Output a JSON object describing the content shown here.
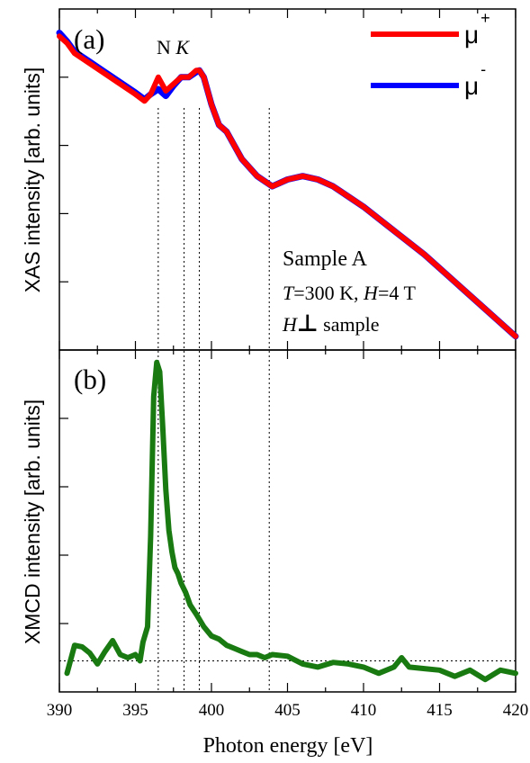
{
  "chart_data": [
    {
      "type": "line",
      "panel_label": "(a)",
      "xlabel": "",
      "ylabel": "XAS intensity [arb. units]",
      "xlim": [
        390,
        420
      ],
      "ylim": [
        0,
        1
      ],
      "legend_position": "top-right",
      "series": [
        {
          "name": "μ",
          "superscript": "+",
          "color": "#ff0000",
          "x": [
            390,
            390.5,
            391,
            392,
            393,
            394,
            395,
            395.6,
            396,
            396.5,
            397,
            397.5,
            398,
            398.5,
            399,
            399.2,
            399.5,
            400,
            400.5,
            401,
            402,
            403,
            404,
            405,
            406,
            407,
            408,
            410,
            412,
            414,
            416,
            418,
            420
          ],
          "y": [
            0.92,
            0.9,
            0.87,
            0.84,
            0.81,
            0.78,
            0.75,
            0.73,
            0.75,
            0.8,
            0.76,
            0.78,
            0.8,
            0.8,
            0.82,
            0.82,
            0.8,
            0.72,
            0.66,
            0.64,
            0.56,
            0.51,
            0.48,
            0.5,
            0.51,
            0.5,
            0.48,
            0.42,
            0.35,
            0.28,
            0.2,
            0.12,
            0.04
          ]
        },
        {
          "name": "μ",
          "superscript": "-",
          "color": "#0000ff",
          "x": [
            390,
            390.5,
            391,
            392,
            393,
            394,
            395,
            395.6,
            396,
            396.5,
            397,
            397.5,
            398,
            398.5,
            399,
            399.2,
            399.5,
            400,
            400.5,
            401,
            402,
            403,
            404,
            405,
            406,
            407,
            408,
            410,
            412,
            414,
            416,
            418,
            420
          ],
          "y": [
            0.93,
            0.905,
            0.875,
            0.845,
            0.815,
            0.785,
            0.755,
            0.735,
            0.75,
            0.765,
            0.745,
            0.775,
            0.8,
            0.8,
            0.815,
            0.82,
            0.8,
            0.72,
            0.66,
            0.64,
            0.56,
            0.51,
            0.48,
            0.5,
            0.51,
            0.5,
            0.48,
            0.42,
            0.35,
            0.28,
            0.2,
            0.12,
            0.04
          ]
        }
      ],
      "annotations": {
        "edge_label_n": "N",
        "edge_label_k": "K",
        "sample": "Sample A",
        "cond_t_sym": "T",
        "cond_t_val": "=300 K, ",
        "cond_h_sym": "H",
        "cond_h_val": "=4 T",
        "geom_h": "H",
        "geom_perp": "⊥",
        "geom_text": " sample"
      },
      "reference_lines_x": [
        396.5,
        398.2,
        399.2,
        403.8
      ]
    },
    {
      "type": "line",
      "panel_label": "(b)",
      "xlabel": "Photon energy [eV]",
      "ylabel": "XMCD intensity [arb. units]",
      "xlim": [
        390,
        420
      ],
      "ylim": [
        -0.1,
        1.0
      ],
      "x_ticks": [
        390,
        395,
        400,
        405,
        410,
        415,
        420
      ],
      "baseline_y": 0,
      "series": [
        {
          "name": "XMCD",
          "color": "#1a7a12",
          "x": [
            390.5,
            391,
            391.5,
            392,
            392.5,
            393,
            393.5,
            394,
            394.5,
            395,
            395.3,
            395.5,
            395.8,
            396,
            396.2,
            396.4,
            396.6,
            396.8,
            397,
            397.2,
            397.4,
            397.6,
            397.8,
            398,
            398.3,
            398.6,
            399,
            399.5,
            400,
            400.5,
            401,
            401.5,
            402,
            402.5,
            403,
            403.5,
            404,
            405,
            406,
            407,
            408,
            409,
            410,
            411,
            412,
            412.5,
            413,
            414,
            415,
            416,
            417,
            418,
            419,
            420
          ],
          "y": [
            -0.04,
            0.05,
            0.045,
            0.025,
            -0.01,
            0.03,
            0.065,
            0.02,
            0.01,
            0.02,
            0.0,
            0.06,
            0.11,
            0.4,
            0.85,
            0.96,
            0.93,
            0.75,
            0.55,
            0.42,
            0.35,
            0.3,
            0.28,
            0.25,
            0.22,
            0.18,
            0.15,
            0.11,
            0.08,
            0.07,
            0.05,
            0.04,
            0.03,
            0.02,
            0.02,
            0.01,
            0.02,
            0.015,
            -0.01,
            -0.02,
            -0.005,
            -0.01,
            -0.02,
            -0.04,
            -0.02,
            0.01,
            -0.02,
            -0.025,
            -0.03,
            -0.05,
            -0.03,
            -0.06,
            -0.03,
            -0.04
          ]
        }
      ]
    }
  ]
}
